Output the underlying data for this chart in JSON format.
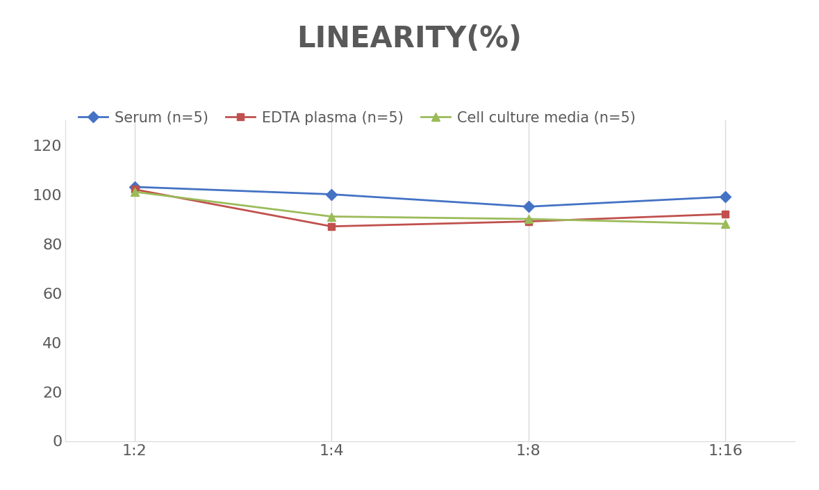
{
  "title": "LINEARITY(%)",
  "x_labels": [
    "1:2",
    "1:4",
    "1:8",
    "1:16"
  ],
  "series": [
    {
      "label": "Serum (n=5)",
      "values": [
        103,
        100,
        95,
        99
      ],
      "color": "#4472C4",
      "marker": "D",
      "marker_size": 8,
      "linewidth": 2.0
    },
    {
      "label": "EDTA plasma (n=5)",
      "values": [
        102,
        87,
        89,
        92
      ],
      "color": "#C0504D",
      "marker": "s",
      "marker_size": 7,
      "linewidth": 2.0
    },
    {
      "label": "Cell culture media (n=5)",
      "values": [
        101,
        91,
        90,
        88
      ],
      "color": "#9BBB59",
      "marker": "^",
      "marker_size": 8,
      "linewidth": 2.0
    }
  ],
  "ylim": [
    0,
    130
  ],
  "yticks": [
    0,
    20,
    40,
    60,
    80,
    100,
    120
  ],
  "title_fontsize": 30,
  "tick_fontsize": 16,
  "legend_fontsize": 15,
  "text_color": "#595959",
  "background_color": "#ffffff",
  "grid_color": "#d9d9d9",
  "spine_color": "#d9d9d9"
}
